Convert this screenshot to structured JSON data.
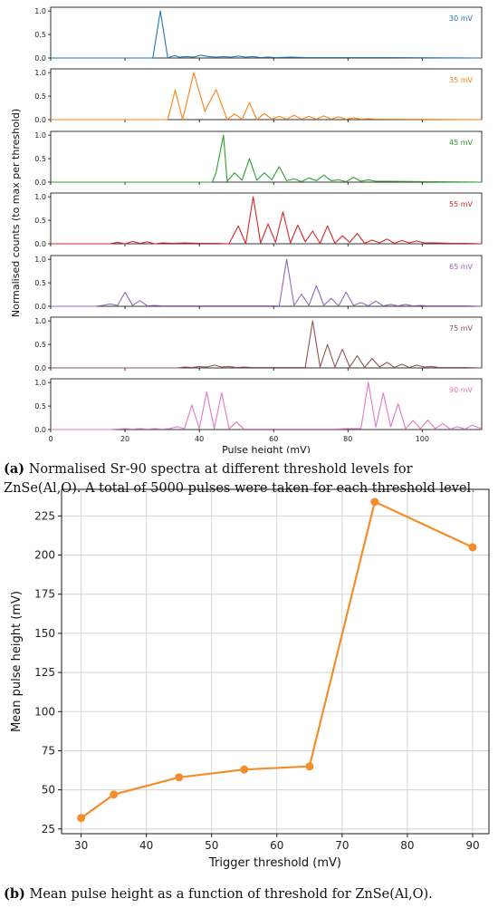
{
  "chart_data": [
    {
      "type": "line",
      "panel": "a",
      "xlabel": "Pulse height (mV)",
      "ylabel": "Normalised counts (to max per threshold)",
      "xlim": [
        0,
        116
      ],
      "xticks": [
        0,
        20,
        40,
        60,
        80,
        100
      ],
      "ylim": [
        0,
        1.08
      ],
      "yticks": [
        "0.0",
        "0.5",
        "1.0"
      ],
      "series": [
        {
          "name": "30 mV",
          "color": "#1f77b4",
          "x": [
            0,
            26.5,
            27.5,
            29.5,
            31.5,
            32.5,
            33.5,
            34.5,
            36.5,
            38.5,
            40.5,
            42.5,
            44.5,
            46.5,
            48.5,
            50.5,
            52.5,
            54.5,
            56.5,
            58.5,
            60.5,
            64.5,
            68.5,
            72.5,
            76.5,
            80.5,
            84.5,
            90.5,
            116
          ],
          "y": [
            0,
            0,
            0,
            1.0,
            0,
            0.03,
            0.05,
            0.02,
            0.03,
            0.02,
            0.06,
            0.03,
            0.02,
            0.03,
            0.02,
            0.04,
            0.02,
            0.03,
            0.01,
            0.02,
            0.01,
            0.02,
            0.01,
            0.01,
            0.01,
            0.01,
            0.01,
            0.01,
            0
          ]
        },
        {
          "name": "35 mV",
          "color": "#ff7f0e",
          "x": [
            0,
            31.5,
            33.5,
            35.5,
            38.5,
            41.5,
            44.5,
            47.5,
            49.5,
            51.5,
            53.5,
            55.5,
            57.5,
            59.5,
            61.5,
            63.5,
            65.5,
            67.5,
            69.5,
            71.5,
            73.5,
            75.5,
            77.5,
            79.5,
            81.5,
            83.5,
            85.5,
            87.5,
            89.5,
            116
          ],
          "y": [
            0,
            0,
            0.63,
            0,
            1.0,
            0.18,
            0.64,
            0,
            0.12,
            0.01,
            0.36,
            0,
            0.13,
            0.01,
            0.07,
            0.01,
            0.09,
            0.01,
            0.07,
            0.01,
            0.08,
            0.01,
            0.06,
            0.01,
            0.04,
            0.01,
            0.02,
            0.01,
            0.01,
            0
          ]
        },
        {
          "name": "45 mV",
          "color": "#2ca02c",
          "x": [
            0,
            43.5,
            44.5,
            46.5,
            47.5,
            49.5,
            51.5,
            53.5,
            55.5,
            57.5,
            59.5,
            61.5,
            63.5,
            65.5,
            67.5,
            69.5,
            71.5,
            73.5,
            75.5,
            77.5,
            79.5,
            81.5,
            83.5,
            85.5,
            87.5,
            89.5,
            116
          ],
          "y": [
            0,
            0,
            0.2,
            1.0,
            0.02,
            0.2,
            0.04,
            0.5,
            0.04,
            0.2,
            0.05,
            0.33,
            0.03,
            0.07,
            0.01,
            0.09,
            0.03,
            0.15,
            0.03,
            0.05,
            0.01,
            0.1,
            0.02,
            0.05,
            0.02,
            0.02,
            0
          ]
        },
        {
          "name": "55 mV",
          "color": "#d62728",
          "x": [
            0,
            16,
            18,
            20,
            22,
            24,
            26,
            28,
            30,
            33,
            36,
            40,
            44,
            48,
            50.5,
            52.5,
            54.5,
            56.5,
            58.5,
            60.5,
            62.5,
            64.5,
            66.5,
            68.5,
            70.5,
            72.5,
            74.5,
            76.5,
            78.5,
            80.5,
            82.5,
            84.5,
            86.5,
            88.5,
            90.5,
            92.5,
            94.5,
            96.5,
            98.5,
            100.5,
            104,
            108,
            112,
            116
          ],
          "y": [
            0,
            0,
            0.03,
            0,
            0.05,
            0.01,
            0.04,
            0,
            0.02,
            0.01,
            0.02,
            0.01,
            0.01,
            0,
            0.38,
            0,
            1.0,
            0.02,
            0.42,
            0.03,
            0.68,
            0.02,
            0.4,
            0.04,
            0.27,
            0.01,
            0.38,
            0.01,
            0.17,
            0.03,
            0.22,
            0.01,
            0.08,
            0.02,
            0.1,
            0.01,
            0.07,
            0.02,
            0.06,
            0.02,
            0.02,
            0.01,
            0.01,
            0
          ]
        },
        {
          "name": "65 mV",
          "color": "#9467bd",
          "x": [
            0,
            12,
            14,
            16,
            18,
            20,
            22,
            24,
            26,
            28,
            30,
            34,
            38,
            42,
            46,
            50,
            54,
            58,
            61.5,
            63.5,
            65.5,
            67.5,
            69.5,
            71.5,
            73.5,
            75.5,
            77.5,
            79.5,
            81.5,
            83.5,
            85.5,
            87.5,
            89.5,
            91.5,
            93.5,
            95.5,
            97.5,
            99.5,
            101.5,
            104,
            108,
            112,
            116
          ],
          "y": [
            0,
            0,
            0.02,
            0.05,
            0.02,
            0.3,
            0.02,
            0.12,
            0.01,
            0.02,
            0.01,
            0.01,
            0.01,
            0.01,
            0.01,
            0.01,
            0.01,
            0.01,
            0.01,
            1.0,
            0.02,
            0.26,
            0.02,
            0.44,
            0.02,
            0.17,
            0.01,
            0.3,
            0.02,
            0.08,
            0.01,
            0.11,
            0.01,
            0.04,
            0.01,
            0.04,
            0.01,
            0.02,
            0.01,
            0.01,
            0.01,
            0.01,
            0
          ]
        },
        {
          "name": "75 mV",
          "color": "#8c564b",
          "x": [
            0,
            34,
            36,
            38,
            40,
            42,
            44,
            46,
            48,
            50,
            52,
            54,
            58,
            62,
            68.5,
            70.5,
            72.5,
            74.5,
            76.5,
            78.5,
            80.5,
            82.5,
            84.5,
            86.5,
            88.5,
            90.5,
            92.5,
            94.5,
            96.5,
            98.5,
            100.5,
            102.5,
            104.5,
            108,
            112,
            116
          ],
          "y": [
            0,
            0,
            0.02,
            0.01,
            0.03,
            0.02,
            0.06,
            0.02,
            0.03,
            0.01,
            0.02,
            0.01,
            0.01,
            0.01,
            0.01,
            1.0,
            0.02,
            0.5,
            0.02,
            0.4,
            0.02,
            0.26,
            0.01,
            0.2,
            0.02,
            0.12,
            0.01,
            0.08,
            0.01,
            0.06,
            0.02,
            0.03,
            0.01,
            0.01,
            0.01,
            0
          ]
        },
        {
          "name": "90 mV",
          "color": "#e377c2",
          "x": [
            0,
            16,
            18,
            20,
            22,
            24,
            26,
            28,
            30,
            32,
            34,
            36,
            38,
            40,
            42,
            44,
            46,
            48,
            50,
            52,
            56,
            60,
            64,
            68,
            72,
            76,
            80,
            83.5,
            85.5,
            87.5,
            89.5,
            91.5,
            93.5,
            95.5,
            97.5,
            99.5,
            101.5,
            103.5,
            105.5,
            107.5,
            109.5,
            111.5,
            113.5,
            115,
            116
          ],
          "y": [
            0,
            0,
            0.01,
            0.02,
            0.01,
            0.02,
            0.01,
            0.02,
            0.01,
            0.02,
            0.06,
            0.02,
            0.52,
            0.02,
            0.8,
            0.02,
            0.78,
            0.02,
            0.16,
            0.01,
            0.01,
            0.01,
            0.01,
            0.01,
            0.01,
            0.01,
            0.02,
            0.02,
            1.0,
            0.05,
            0.78,
            0.06,
            0.55,
            0.02,
            0.19,
            0.02,
            0.2,
            0.02,
            0.13,
            0.01,
            0.06,
            0.01,
            0.09,
            0.04,
            0.03
          ]
        }
      ]
    },
    {
      "type": "line",
      "panel": "b",
      "xlabel": "Trigger threshold (mV)",
      "ylabel": "Mean pulse height (mV)",
      "xlim": [
        27,
        92.5
      ],
      "ylim": [
        22,
        242
      ],
      "xticks": [
        30,
        40,
        50,
        60,
        70,
        80,
        90
      ],
      "yticks": [
        25,
        50,
        75,
        100,
        125,
        150,
        175,
        200,
        225
      ],
      "grid": true,
      "color": "#f28e2b",
      "x": [
        30,
        35,
        45,
        55,
        65,
        75,
        90
      ],
      "y": [
        32,
        47,
        58,
        63,
        65,
        234,
        205
      ]
    }
  ],
  "captions": {
    "a": {
      "label": "(a)",
      "text": " Normalised Sr-90 spectra at different threshold levels for ZnSe(Al,O). A total of 5000 pulses were taken for each threshold level."
    },
    "b": {
      "label": "(b)",
      "text": " Mean pulse height as a function of threshold for ZnSe(Al,O)."
    }
  }
}
